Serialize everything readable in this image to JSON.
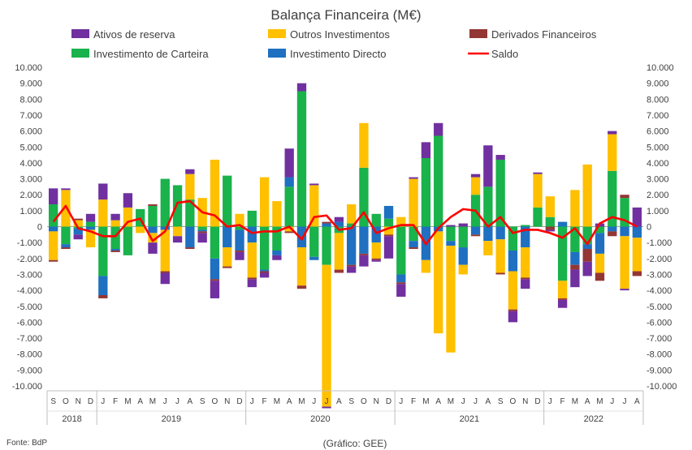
{
  "chart_data": {
    "type": "bar",
    "title": "Balança Financeira (M€)",
    "source": "Fonte: BdP",
    "credit": "(Gráfico: GEE)",
    "ylim": [
      -10000,
      10000
    ],
    "yticks": [
      "10.000",
      "9.000",
      "8.000",
      "7.000",
      "6.000",
      "5.000",
      "4.000",
      "3.000",
      "2.000",
      "1.000",
      "0",
      "-1.000",
      "-2.000",
      "-3.000",
      "-4.000",
      "-5.000",
      "-6.000",
      "-7.000",
      "-8.000",
      "-9.000",
      "-10.000"
    ],
    "grid": false,
    "legend_position": "top",
    "months": [
      "S",
      "O",
      "N",
      "D",
      "J",
      "F",
      "M",
      "A",
      "M",
      "J",
      "J",
      "A",
      "S",
      "O",
      "N",
      "D",
      "J",
      "F",
      "M",
      "A",
      "M",
      "J",
      "J",
      "A",
      "S",
      "O",
      "N",
      "D",
      "J",
      "F",
      "M",
      "A",
      "M",
      "J",
      "J",
      "A",
      "S",
      "O",
      "N",
      "D",
      "J",
      "F",
      "M",
      "A",
      "M",
      "J",
      "J",
      "A"
    ],
    "years": [
      {
        "label": "2018",
        "start": 0,
        "count": 4
      },
      {
        "label": "2019",
        "start": 4,
        "count": 12
      },
      {
        "label": "2020",
        "start": 16,
        "count": 12
      },
      {
        "label": "2021",
        "start": 28,
        "count": 12
      },
      {
        "label": "2022",
        "start": 40,
        "count": 8
      }
    ],
    "series": [
      {
        "name": "Investimento de Carteira",
        "color": "#19B24B",
        "kind": "bar",
        "values": [
          1400,
          -1100,
          -100,
          300,
          -3100,
          -1400,
          -1800,
          1100,
          1300,
          3000,
          2600,
          1700,
          -200,
          -2000,
          3200,
          -200,
          1000,
          -2700,
          -1500,
          2500,
          8500,
          -1900,
          -2400,
          -400,
          200,
          3700,
          800,
          500,
          -3000,
          -900,
          4300,
          5700,
          -900,
          -1300,
          2000,
          2500,
          4200,
          -1500,
          100,
          1200,
          600,
          -3400,
          -1600,
          -1100,
          -400,
          3500,
          1800,
          0
        ]
      },
      {
        "name": "Investimento Directo",
        "color": "#1F70C1",
        "kind": "bar",
        "values": [
          -300,
          -200,
          -400,
          -200,
          -1200,
          -100,
          0,
          0,
          -400,
          -200,
          0,
          -1300,
          -100,
          -1300,
          -1300,
          -1300,
          -1000,
          -100,
          -300,
          600,
          -1300,
          -200,
          200,
          300,
          -2400,
          -1700,
          -1000,
          800,
          -500,
          -400,
          -2100,
          -300,
          -300,
          -1100,
          -500,
          -900,
          -800,
          -1300,
          -1300,
          0,
          0,
          300,
          -800,
          -300,
          -1300,
          -300,
          -600,
          -700
        ]
      },
      {
        "name": "Outros Investimentos",
        "color": "#FFC000",
        "kind": "bar",
        "values": [
          -1800,
          2300,
          400,
          -1100,
          1700,
          400,
          1200,
          -400,
          -600,
          -2600,
          -600,
          1600,
          1800,
          4200,
          -1200,
          800,
          -2200,
          3100,
          1600,
          -300,
          -2400,
          2600,
          -8900,
          -2300,
          1200,
          2800,
          -1000,
          -500,
          600,
          3000,
          -800,
          -6400,
          -6700,
          -600,
          1100,
          -900,
          -2100,
          -2400,
          -1900,
          2100,
          1300,
          -1100,
          2300,
          3900,
          -1200,
          2300,
          -3300,
          -2100
        ]
      },
      {
        "name": "Derivados Financeiros",
        "color": "#943634",
        "kind": "bar",
        "values": [
          -100,
          -100,
          100,
          0,
          -200,
          -100,
          0,
          0,
          100,
          -100,
          0,
          -100,
          -100,
          -100,
          -100,
          -100,
          -100,
          -100,
          0,
          -100,
          -200,
          0,
          100,
          -200,
          -100,
          -100,
          -100,
          -100,
          -100,
          -100,
          0,
          0,
          0,
          0,
          -100,
          0,
          -100,
          -100,
          -100,
          0,
          -200,
          -100,
          -300,
          -800,
          -500,
          -300,
          200,
          -300
        ]
      },
      {
        "name": "Ativos de reserva",
        "color": "#7030A0",
        "kind": "bar",
        "values": [
          1000,
          100,
          -300,
          500,
          1000,
          400,
          900,
          0,
          -700,
          -700,
          -400,
          300,
          -600,
          -1100,
          0,
          -500,
          -500,
          -300,
          -300,
          1800,
          500,
          100,
          -100,
          300,
          -400,
          -700,
          -100,
          -1400,
          -800,
          100,
          1000,
          800,
          100,
          200,
          200,
          2600,
          300,
          -700,
          -600,
          100,
          -100,
          -500,
          -1100,
          -900,
          200,
          200,
          -100,
          1200
        ]
      },
      {
        "name": "Saldo",
        "color": "#FF0000",
        "kind": "line",
        "values": [
          300,
          1300,
          -100,
          -300,
          -600,
          -600,
          300,
          500,
          -900,
          -300,
          1500,
          1600,
          900,
          700,
          0,
          100,
          -400,
          -300,
          -300,
          0,
          -800,
          600,
          700,
          -200,
          -100,
          900,
          -400,
          -100,
          100,
          100,
          -1100,
          -100,
          600,
          1100,
          1000,
          0,
          600,
          -400,
          -200,
          -200,
          -400,
          -700,
          -100,
          -1100,
          200,
          600,
          400,
          0
        ]
      }
    ]
  }
}
